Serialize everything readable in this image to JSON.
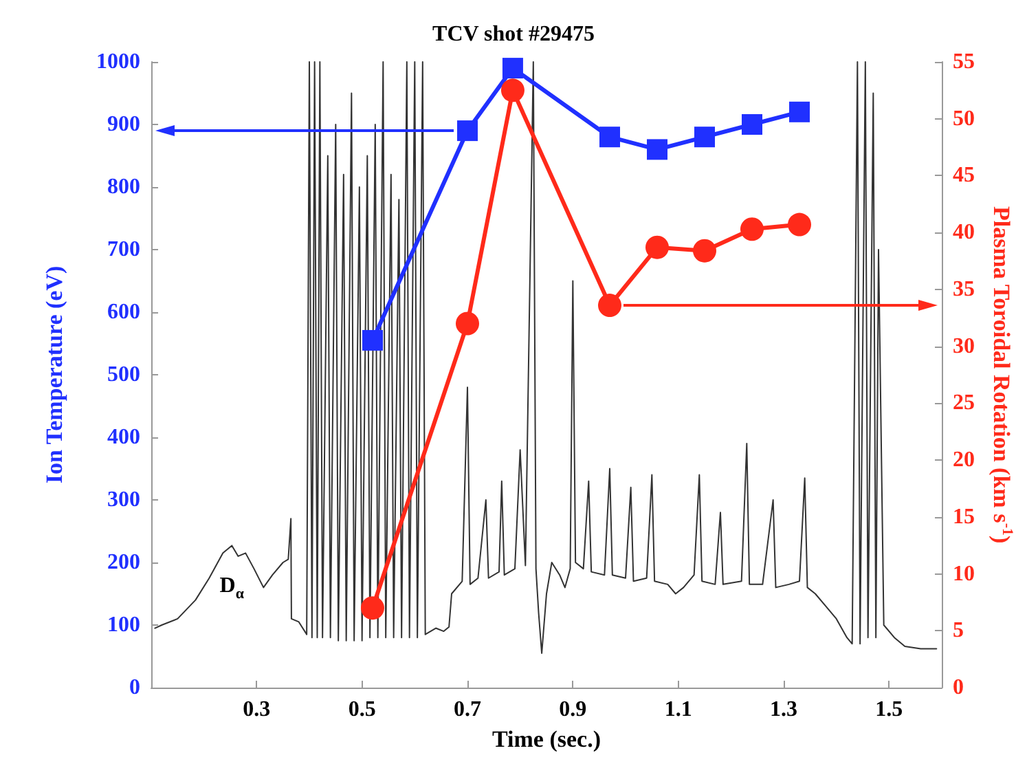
{
  "chart_data": {
    "type": "line",
    "title": "TCV shot #29475",
    "xlabel": "Time (sec.)",
    "ylabel": "Ion Temperature (eV)",
    "y2label": "Plasma Toroidal Rotation (km s$^{-1}$)",
    "xlim": [
      0.1,
      1.6
    ],
    "xticks": [
      0.3,
      0.5,
      0.7,
      0.9,
      1.1,
      1.3,
      1.5
    ],
    "ylim": [
      0,
      1000
    ],
    "yticks": [
      0,
      100,
      200,
      300,
      400,
      500,
      600,
      700,
      800,
      900,
      1000
    ],
    "y2lim": [
      0,
      55
    ],
    "y2ticks": [
      0,
      5,
      10,
      15,
      20,
      25,
      30,
      35,
      40,
      45,
      50,
      55
    ],
    "grid": false,
    "legend": false,
    "line_style": "solid",
    "series": [
      {
        "name": "D$_{α}$",
        "color": "#333333",
        "marker": "none",
        "x": [
          0.107,
          0.12,
          0.15,
          0.184,
          0.21,
          0.236,
          0.253,
          0.265,
          0.279,
          0.295,
          0.313,
          0.33,
          0.35,
          0.36,
          0.365,
          0.366,
          0.38,
          0.395,
          0.4,
          0.405,
          0.41,
          0.415,
          0.42,
          0.425,
          0.435,
          0.44,
          0.45,
          0.455,
          0.465,
          0.47,
          0.48,
          0.485,
          0.495,
          0.5,
          0.51,
          0.515,
          0.525,
          0.53,
          0.54,
          0.545,
          0.555,
          0.56,
          0.57,
          0.575,
          0.585,
          0.59,
          0.6,
          0.605,
          0.615,
          0.62,
          0.64,
          0.655,
          0.665,
          0.67,
          0.69,
          0.7,
          0.705,
          0.72,
          0.735,
          0.74,
          0.76,
          0.765,
          0.77,
          0.79,
          0.8,
          0.81,
          0.825,
          0.83,
          0.835,
          0.841,
          0.85,
          0.86,
          0.875,
          0.885,
          0.895,
          0.9,
          0.905,
          0.92,
          0.93,
          0.935,
          0.96,
          0.97,
          0.975,
          1.0,
          1.01,
          1.015,
          1.04,
          1.05,
          1.055,
          1.08,
          1.095,
          1.11,
          1.13,
          1.14,
          1.145,
          1.17,
          1.18,
          1.185,
          1.22,
          1.23,
          1.235,
          1.26,
          1.28,
          1.285,
          1.31,
          1.33,
          1.34,
          1.345,
          1.36,
          1.38,
          1.4,
          1.42,
          1.43,
          1.44,
          1.445,
          1.455,
          1.46,
          1.47,
          1.475,
          1.48,
          1.49,
          1.51,
          1.53,
          1.56,
          1.59
        ],
        "values": [
          95,
          100,
          110,
          140,
          175,
          215,
          227,
          210,
          215,
          190,
          160,
          180,
          200,
          205,
          270,
          110,
          105,
          85,
          1000,
          80,
          1000,
          80,
          1000,
          80,
          850,
          80,
          900,
          75,
          820,
          75,
          950,
          75,
          800,
          75,
          850,
          80,
          900,
          80,
          1000,
          80,
          820,
          80,
          780,
          80,
          1000,
          80,
          1000,
          80,
          1000,
          85,
          95,
          90,
          97,
          150,
          170,
          480,
          165,
          175,
          300,
          175,
          185,
          330,
          180,
          190,
          380,
          195,
          1000,
          190,
          120,
          55,
          150,
          200,
          180,
          160,
          190,
          650,
          200,
          190,
          330,
          185,
          180,
          350,
          180,
          175,
          320,
          170,
          175,
          340,
          170,
          165,
          150,
          160,
          180,
          340,
          170,
          165,
          280,
          165,
          170,
          390,
          165,
          165,
          300,
          160,
          165,
          170,
          335,
          160,
          150,
          130,
          110,
          80,
          70,
          1000,
          70,
          1000,
          80,
          950,
          80,
          700,
          100,
          80,
          66,
          62,
          62
        ]
      },
      {
        "color": "#2030ff",
        "marker": "square",
        "x": [
          0.52,
          0.7,
          0.786,
          0.97,
          1.06,
          1.15,
          1.24,
          1.33
        ],
        "values": [
          555,
          890,
          990,
          880,
          860,
          880,
          900,
          920
        ]
      },
      {
        "color": "#ff2a1a",
        "marker": "circle",
        "axis": "y2",
        "x": [
          0.52,
          0.7,
          0.786,
          0.97,
          1.06,
          1.15,
          1.24,
          1.33
        ],
        "values": [
          7,
          32,
          52.5,
          33.6,
          38.7,
          38.4,
          40.3,
          40.7
        ]
      }
    ]
  }
}
